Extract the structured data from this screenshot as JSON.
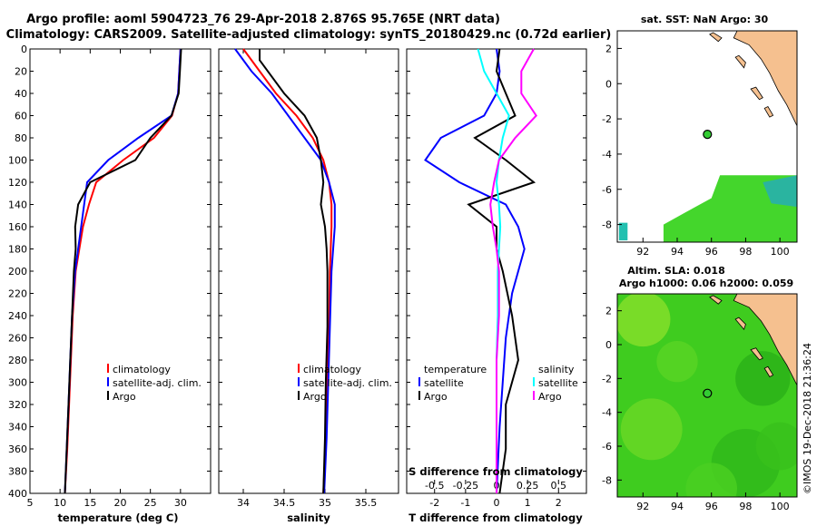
{
  "titles": {
    "line1": "Argo profile: aoml 5904723_76 29-Apr-2018 2.876S 95.765E (NRT data)",
    "line2": "Climatology: CARS2009. Satellite-adjusted climatology: synTS_20180429.nc (0.72d earlier)"
  },
  "colors": {
    "climatology": "#ff0000",
    "satellite": "#0000ff",
    "argo": "#000000",
    "satellite_s": "#00ffff",
    "argo_s": "#ff00ff",
    "land": "#f5c08f",
    "ocean_sst": "#33dd33",
    "ocean_sla": "#44cc22"
  },
  "chart_data": [
    {
      "type": "line",
      "id": "temperature",
      "xlabel": "temperature (deg C)",
      "ylabel": "",
      "xlim": [
        5,
        35
      ],
      "ylim": [
        400,
        0
      ],
      "xticks": [
        "5",
        "10",
        "15",
        "20",
        "25",
        "30"
      ],
      "yticks": [
        "0",
        "20",
        "40",
        "60",
        "80",
        "100",
        "120",
        "140",
        "160",
        "180",
        "200",
        "220",
        "240",
        "260",
        "280",
        "300",
        "320",
        "340",
        "360",
        "380",
        "400"
      ],
      "legend": [
        "climatology",
        "satellite-adj. clim.",
        "Argo"
      ],
      "series": [
        {
          "name": "climatology",
          "depth": [
            0,
            20,
            40,
            60,
            80,
            100,
            120,
            140,
            160,
            180,
            200,
            240,
            280,
            320,
            360,
            400
          ],
          "values": [
            30,
            29.8,
            29.6,
            28.6,
            25.6,
            20.5,
            16,
            14.8,
            13.8,
            13.2,
            12.6,
            12.1,
            11.8,
            11.5,
            11.2,
            10.8
          ]
        },
        {
          "name": "satellite-adj. clim.",
          "depth": [
            0,
            20,
            40,
            60,
            80,
            100,
            120,
            140,
            160,
            180,
            200,
            240,
            280,
            320,
            360,
            400
          ],
          "values": [
            30,
            29.8,
            29.6,
            28.5,
            23,
            18,
            14.5,
            14,
            13.5,
            13,
            12.5,
            12,
            11.7,
            11.4,
            11.1,
            10.8
          ]
        },
        {
          "name": "Argo",
          "depth": [
            0,
            20,
            40,
            60,
            80,
            100,
            120,
            140,
            160,
            180,
            200,
            240,
            280,
            320,
            360,
            400
          ],
          "values": [
            30.1,
            29.9,
            29.7,
            28.5,
            25,
            22.5,
            15,
            13,
            12.5,
            12.6,
            12.3,
            12,
            11.7,
            11.4,
            11.1,
            10.8
          ]
        }
      ]
    },
    {
      "type": "line",
      "id": "salinity",
      "xlabel": "salinity",
      "xlim": [
        33.7,
        35.9
      ],
      "ylim": [
        400,
        0
      ],
      "xticks": [
        "34",
        "34.5",
        "35",
        "35.5"
      ],
      "legend": [
        "climatology",
        "satellite-adj. clim.",
        "Argo"
      ],
      "series": [
        {
          "name": "climatology",
          "depth": [
            0,
            20,
            40,
            60,
            80,
            100,
            120,
            140,
            160,
            180,
            200,
            250,
            300,
            350,
            400
          ],
          "values": [
            34.0,
            34.2,
            34.4,
            34.65,
            34.85,
            34.98,
            35.05,
            35.08,
            35.08,
            35.07,
            35.06,
            35.05,
            35.03,
            35.01,
            34.98
          ]
        },
        {
          "name": "satellite-adj. clim.",
          "depth": [
            0,
            20,
            40,
            60,
            80,
            100,
            120,
            140,
            160,
            180,
            200,
            250,
            300,
            350,
            400
          ],
          "values": [
            33.9,
            34.1,
            34.35,
            34.55,
            34.75,
            34.95,
            35.05,
            35.12,
            35.12,
            35.1,
            35.08,
            35.06,
            35.04,
            35.02,
            34.99
          ]
        },
        {
          "name": "Argo",
          "depth": [
            0,
            10,
            40,
            60,
            80,
            100,
            120,
            140,
            160,
            180,
            200,
            250,
            300,
            350,
            400
          ],
          "values": [
            34.2,
            34.2,
            34.5,
            34.75,
            34.9,
            34.95,
            34.98,
            34.95,
            35.0,
            35.02,
            35.03,
            35.03,
            35.01,
            35.0,
            34.98
          ]
        }
      ]
    },
    {
      "type": "line",
      "id": "difference",
      "xlabel": "T difference from climatology",
      "xlabel2": "S difference from climatology",
      "xlim": [
        -2.9,
        2.9
      ],
      "ylim": [
        400,
        0
      ],
      "xticks": [
        "-2",
        "-1",
        "0",
        "1",
        "2"
      ],
      "xticks_s": [
        "-0.5",
        "-0.25",
        "0",
        "0.25",
        "0.5"
      ],
      "legend_t": {
        "header": "temperature",
        "items": [
          "satellite",
          "Argo"
        ]
      },
      "legend_s": {
        "header": "salinity",
        "items": [
          "satellite",
          "Argo"
        ]
      },
      "series": [
        {
          "name": "T satellite",
          "depth": [
            0,
            20,
            40,
            60,
            80,
            100,
            120,
            140,
            160,
            180,
            200,
            220,
            260,
            300,
            340,
            400
          ],
          "values": [
            0,
            0.1,
            0,
            -0.4,
            -1.8,
            -2.3,
            -1.2,
            0.3,
            0.7,
            0.9,
            0.7,
            0.5,
            0.3,
            0.2,
            0.1,
            0
          ]
        },
        {
          "name": "T Argo",
          "depth": [
            0,
            20,
            40,
            60,
            80,
            100,
            120,
            140,
            160,
            180,
            200,
            240,
            280,
            320,
            360,
            400
          ],
          "values": [
            0.1,
            0,
            0.3,
            0.6,
            -0.7,
            0.3,
            1.2,
            -0.9,
            0,
            0,
            0.2,
            0.5,
            0.7,
            0.3,
            0.3,
            0.1
          ]
        },
        {
          "name": "S satellite",
          "depth": [
            0,
            20,
            40,
            60,
            80,
            100,
            120,
            140,
            160,
            180,
            200,
            240,
            280,
            320,
            360,
            400
          ],
          "values": [
            -0.15,
            -0.1,
            0,
            0.1,
            0.05,
            0.02,
            0,
            0.02,
            0.03,
            0.02,
            0.01,
            0.01,
            0,
            0,
            0,
            0
          ]
        },
        {
          "name": "S Argo",
          "depth": [
            0,
            20,
            40,
            60,
            80,
            100,
            120,
            140,
            160,
            180,
            200,
            240,
            280,
            320,
            360,
            400
          ],
          "values": [
            0.3,
            0.2,
            0.2,
            0.32,
            0.15,
            0.02,
            -0.02,
            -0.05,
            -0.03,
            0,
            0.02,
            0.02,
            0,
            0,
            0,
            0
          ]
        }
      ]
    },
    {
      "type": "heatmap",
      "id": "sst_map",
      "title": "sat. SST: NaN Argo: 30",
      "xlim": [
        90.5,
        101
      ],
      "ylim": [
        -9,
        3
      ],
      "xticks": [
        "92",
        "94",
        "96",
        "98",
        "100"
      ],
      "yticks": [
        "2",
        "0",
        "-2",
        "-4",
        "-6",
        "-8"
      ],
      "argo_position": [
        95.765,
        -2.876
      ]
    },
    {
      "type": "heatmap",
      "id": "sla_map",
      "title": "Altim. SLA: 0.018",
      "subtitle": "Argo h1000: 0.06 h2000: 0.059",
      "xlim": [
        90.5,
        101
      ],
      "ylim": [
        -9,
        3
      ],
      "xticks": [
        "92",
        "94",
        "96",
        "98",
        "100"
      ],
      "yticks": [
        "2",
        "0",
        "-2",
        "-4",
        "-6",
        "-8"
      ],
      "argo_position": [
        95.765,
        -2.876
      ]
    }
  ],
  "watermark": "©IMOS 19-Dec-2018 21:36:24"
}
